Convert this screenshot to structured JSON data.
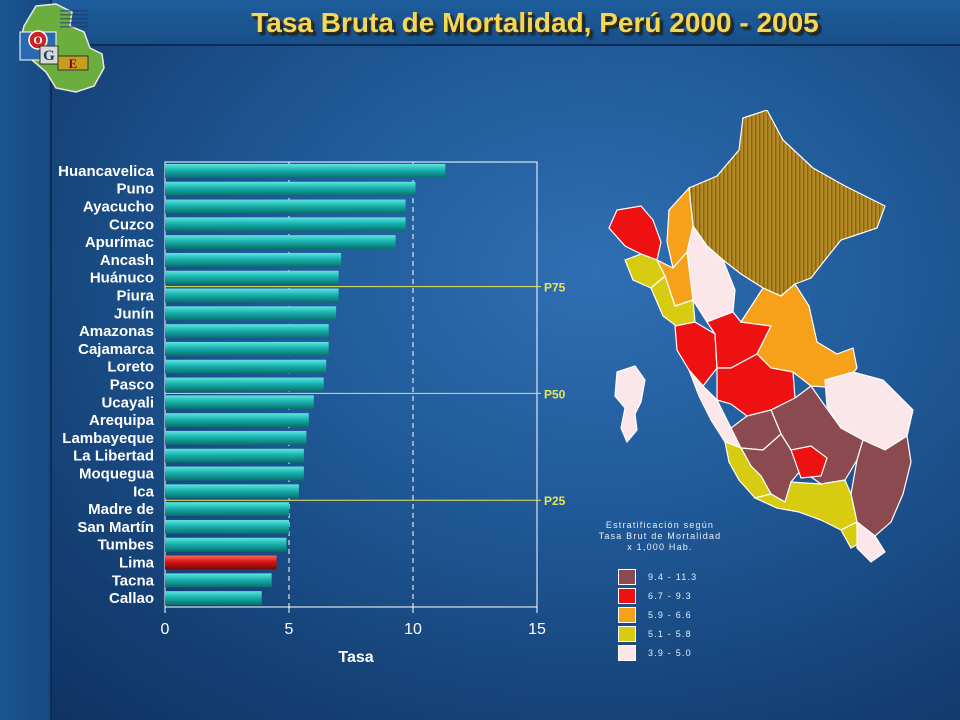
{
  "title": "Tasa Bruta de Mortalidad, Perú 2000 - 2005",
  "logo": {
    "letters": [
      "O",
      "G",
      "E"
    ]
  },
  "chart_data": {
    "type": "bar",
    "orientation": "horizontal",
    "categories": [
      "Huancavelica",
      "Puno",
      "Ayacucho",
      "Cuzco",
      "Apurímac",
      "Ancash",
      "Huánuco",
      "Piura",
      "Junín",
      "Amazonas",
      "Cajamarca",
      "Loreto",
      "Pasco",
      "Ucayali",
      "Arequipa",
      "Lambayeque",
      "La Libertad",
      "Moquegua",
      "Ica",
      "Madre de",
      "San Martín",
      "Tumbes",
      "Lima",
      "Tacna",
      "Callao"
    ],
    "values": [
      11.3,
      10.1,
      9.7,
      9.7,
      9.3,
      7.1,
      7.0,
      7.0,
      6.9,
      6.6,
      6.6,
      6.5,
      6.4,
      6.0,
      5.8,
      5.7,
      5.6,
      5.6,
      5.4,
      5.0,
      5.0,
      4.9,
      4.5,
      4.3,
      3.9
    ],
    "highlight_category": "Lima",
    "bar_color": "#17b3b0",
    "highlight_color": "#cc1010",
    "xlabel": "Tasa",
    "ylabel": "",
    "xlim": [
      0,
      15
    ],
    "xticks": [
      0,
      5,
      10,
      15
    ],
    "vertical_gridlines": [
      5,
      10
    ],
    "reference_lines": [
      {
        "label": "P75",
        "after_category": "Huánuco"
      },
      {
        "label": "P50",
        "after_category": "Pasco"
      },
      {
        "label": "P25",
        "after_category": "Ica"
      }
    ],
    "reference_line_color": "#e6e65a"
  },
  "map_legend": {
    "title_lines": [
      "Estratificación según",
      "Tasa Brut   de Mortalidad",
      "x 1,000 Hab."
    ],
    "items": [
      {
        "label": "9.4 - 11.3",
        "color": "#8b4a50"
      },
      {
        "label": "6.7 - 9.3",
        "color": "#ee1111"
      },
      {
        "label": "5.9 - 6.6",
        "color": "#f7a11a"
      },
      {
        "label": "5.1 - 5.8",
        "color": "#d8cc12"
      },
      {
        "label": "3.9 - 5.0",
        "color": "#fbe6ea"
      }
    ]
  }
}
